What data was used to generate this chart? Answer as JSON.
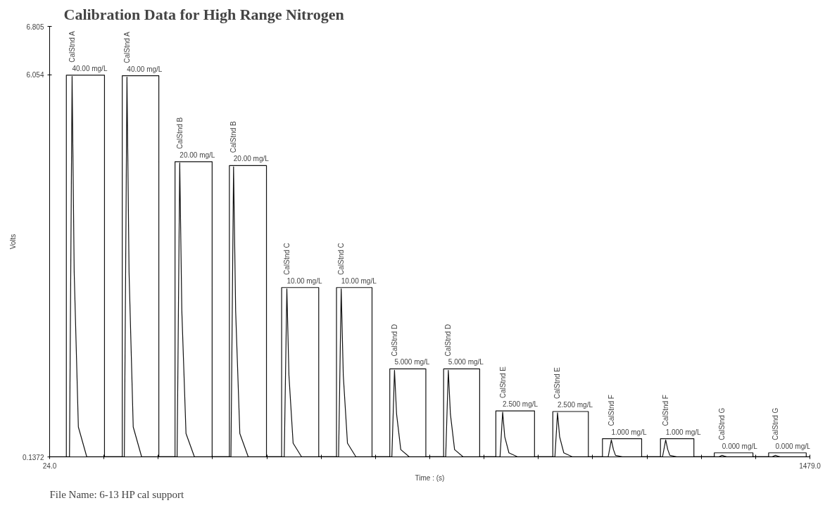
{
  "chart_data": {
    "type": "line",
    "title": "Calibration Data for High Range Nitrogen",
    "xlabel": "Time : (s)",
    "ylabel": "Volts",
    "xlim": [
      24,
      1479
    ],
    "ylim": [
      0.1372,
      6.805
    ],
    "xticks": [
      {
        "value": 24,
        "label": "24.0"
      },
      {
        "value": 127.93,
        "label": null
      },
      {
        "value": 231.86,
        "label": null
      },
      {
        "value": 335.79,
        "label": null
      },
      {
        "value": 439.71,
        "label": null
      },
      {
        "value": 543.64,
        "label": null
      },
      {
        "value": 647.57,
        "label": null
      },
      {
        "value": 751.5,
        "label": null
      },
      {
        "value": 855.43,
        "label": null
      },
      {
        "value": 959.36,
        "label": null
      },
      {
        "value": 1063.29,
        "label": null
      },
      {
        "value": 1167.21,
        "label": null
      },
      {
        "value": 1271.14,
        "label": null
      },
      {
        "value": 1375.07,
        "label": null
      },
      {
        "value": 1479,
        "label": "1479.0"
      }
    ],
    "yticks": [
      0.1372,
      6.054,
      6.805
    ],
    "grid": false,
    "series": [
      {
        "color": "#111111",
        "x": [
          24,
          62,
          67,
          71,
          79,
          95,
          167,
          172,
          176,
          184,
          200,
          268,
          273,
          277,
          285,
          301,
          371,
          376,
          380,
          388,
          404,
          473,
          478,
          482,
          490,
          506,
          577,
          582,
          586,
          594,
          610,
          679,
          684,
          688,
          696,
          712,
          782,
          787,
          791,
          799,
          815,
          886,
          891,
          895,
          903,
          919,
          991,
          996,
          1000,
          1008,
          1024,
          1093,
          1099,
          1103,
          1107,
          1120,
          1197,
          1203,
          1207,
          1211,
          1224,
          1305,
          1311,
          1315,
          1320,
          1335,
          1407,
          1413,
          1417,
          1422,
          1437,
          1479
        ],
        "values": [
          0.14,
          0.14,
          6.03,
          3.0,
          0.6,
          0.14,
          0.14,
          6.02,
          3.0,
          0.6,
          0.14,
          0.14,
          4.69,
          2.4,
          0.5,
          0.14,
          0.14,
          4.63,
          2.4,
          0.5,
          0.14,
          0.14,
          2.74,
          1.4,
          0.35,
          0.14,
          0.14,
          2.74,
          1.4,
          0.35,
          0.14,
          0.14,
          1.48,
          0.8,
          0.25,
          0.14,
          0.14,
          1.48,
          0.8,
          0.25,
          0.14,
          0.14,
          0.83,
          0.45,
          0.2,
          0.14,
          0.14,
          0.82,
          0.45,
          0.2,
          0.14,
          0.14,
          0.4,
          0.25,
          0.16,
          0.14,
          0.14,
          0.4,
          0.25,
          0.16,
          0.14,
          0.14,
          0.16,
          0.15,
          0.14,
          0.14,
          0.14,
          0.16,
          0.15,
          0.14,
          0.14,
          0.14
        ]
      },
      {
        "color": "#111111",
        "x": [
          56,
          56,
          129,
          129,
          163,
          163,
          233,
          233,
          264,
          264,
          335,
          335,
          368,
          368,
          439,
          439,
          468,
          468,
          539,
          539,
          573,
          573,
          641,
          641,
          675,
          675,
          744,
          744,
          778,
          778,
          847,
          847,
          878,
          878,
          952,
          952,
          987,
          987,
          1055,
          1055,
          1082,
          1082,
          1157,
          1157,
          1193,
          1193,
          1257,
          1257,
          1296,
          1296,
          1370,
          1370,
          1400,
          1400,
          1472,
          1472
        ],
        "values": [
          0.14,
          6.05,
          6.05,
          0.14,
          0.14,
          6.04,
          6.04,
          0.14,
          0.14,
          4.71,
          4.71,
          0.14,
          0.14,
          4.65,
          4.65,
          0.14,
          0.14,
          2.76,
          2.76,
          0.14,
          0.14,
          2.76,
          2.76,
          0.14,
          0.14,
          1.5,
          1.5,
          0.14,
          0.14,
          1.5,
          1.5,
          0.14,
          0.14,
          0.85,
          0.85,
          0.14,
          0.14,
          0.84,
          0.84,
          0.14,
          0.14,
          0.42,
          0.42,
          0.14,
          0.14,
          0.42,
          0.42,
          0.14,
          0.14,
          0.2,
          0.2,
          0.14,
          0.14,
          0.2,
          0.2,
          0.14
        ]
      }
    ],
    "annotations": [
      {
        "text": "CalStnd A",
        "x": 67,
        "y": 6.05
      },
      {
        "text": "40.00 mg/L",
        "x": 67,
        "y": 6.05
      },
      {
        "text": "CalStnd A",
        "x": 172,
        "y": 6.04
      },
      {
        "text": "40.00 mg/L",
        "x": 172,
        "y": 6.04
      },
      {
        "text": "CalStnd B",
        "x": 273,
        "y": 4.71
      },
      {
        "text": "20.00 mg/L",
        "x": 273,
        "y": 4.71
      },
      {
        "text": "CalStnd B",
        "x": 376,
        "y": 4.65
      },
      {
        "text": "20.00 mg/L",
        "x": 376,
        "y": 4.65
      },
      {
        "text": "CalStnd C",
        "x": 478,
        "y": 2.76
      },
      {
        "text": "10.00 mg/L",
        "x": 478,
        "y": 2.76
      },
      {
        "text": "CalStnd C",
        "x": 582,
        "y": 2.76
      },
      {
        "text": "10.00 mg/L",
        "x": 582,
        "y": 2.76
      },
      {
        "text": "CalStnd D",
        "x": 684,
        "y": 1.5
      },
      {
        "text": "5.000 mg/L",
        "x": 684,
        "y": 1.5
      },
      {
        "text": "CalStnd D",
        "x": 787,
        "y": 1.5
      },
      {
        "text": "5.000 mg/L",
        "x": 787,
        "y": 1.5
      },
      {
        "text": "CalStnd E",
        "x": 891,
        "y": 0.85
      },
      {
        "text": "2.500 mg/L",
        "x": 891,
        "y": 0.85
      },
      {
        "text": "CalStnd E",
        "x": 996,
        "y": 0.84
      },
      {
        "text": "2.500 mg/L",
        "x": 996,
        "y": 0.84
      },
      {
        "text": "CalStnd F",
        "x": 1099,
        "y": 0.42
      },
      {
        "text": "1.000 mg/L",
        "x": 1099,
        "y": 0.42
      },
      {
        "text": "CalStnd F",
        "x": 1203,
        "y": 0.42
      },
      {
        "text": "1.000 mg/L",
        "x": 1203,
        "y": 0.42
      },
      {
        "text": "CalStnd G",
        "x": 1311,
        "y": 0.2
      },
      {
        "text": "0.000 mg/L",
        "x": 1311,
        "y": 0.2
      },
      {
        "text": "CalStnd G",
        "x": 1413,
        "y": 0.2
      },
      {
        "text": "0.000 mg/L",
        "x": 1413,
        "y": 0.2
      },
      "File Name: 6-13 HP cal support"
    ]
  }
}
